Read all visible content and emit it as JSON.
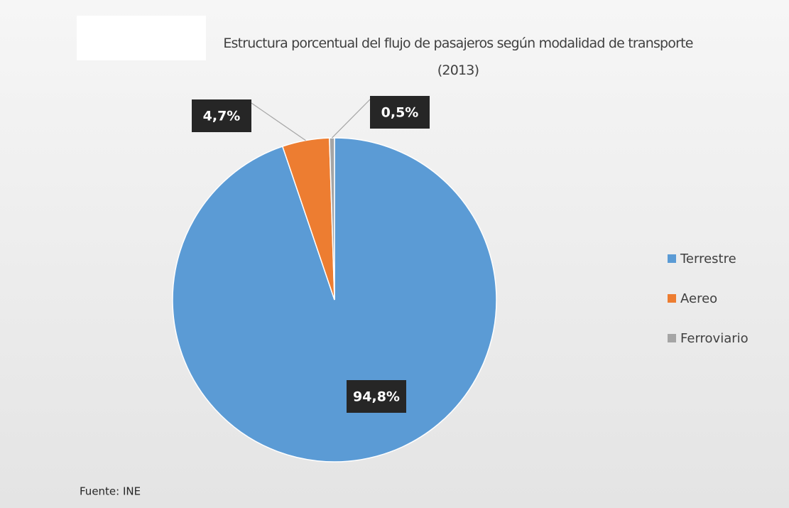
{
  "chart_data": {
    "type": "pie",
    "title": "Estructura porcentual del flujo de pasajeros según modalidad de transporte (2013)",
    "categories": [
      "Terrestre",
      "Aereo",
      "Ferroviario"
    ],
    "values": [
      94.8,
      4.7,
      0.5
    ],
    "value_labels": [
      "94,8%",
      "4,7%",
      "0,5%"
    ],
    "colors": [
      "#5b9bd5",
      "#ed7d31",
      "#a5a5a5"
    ],
    "legend": "right",
    "source": "Fuente: INE"
  }
}
